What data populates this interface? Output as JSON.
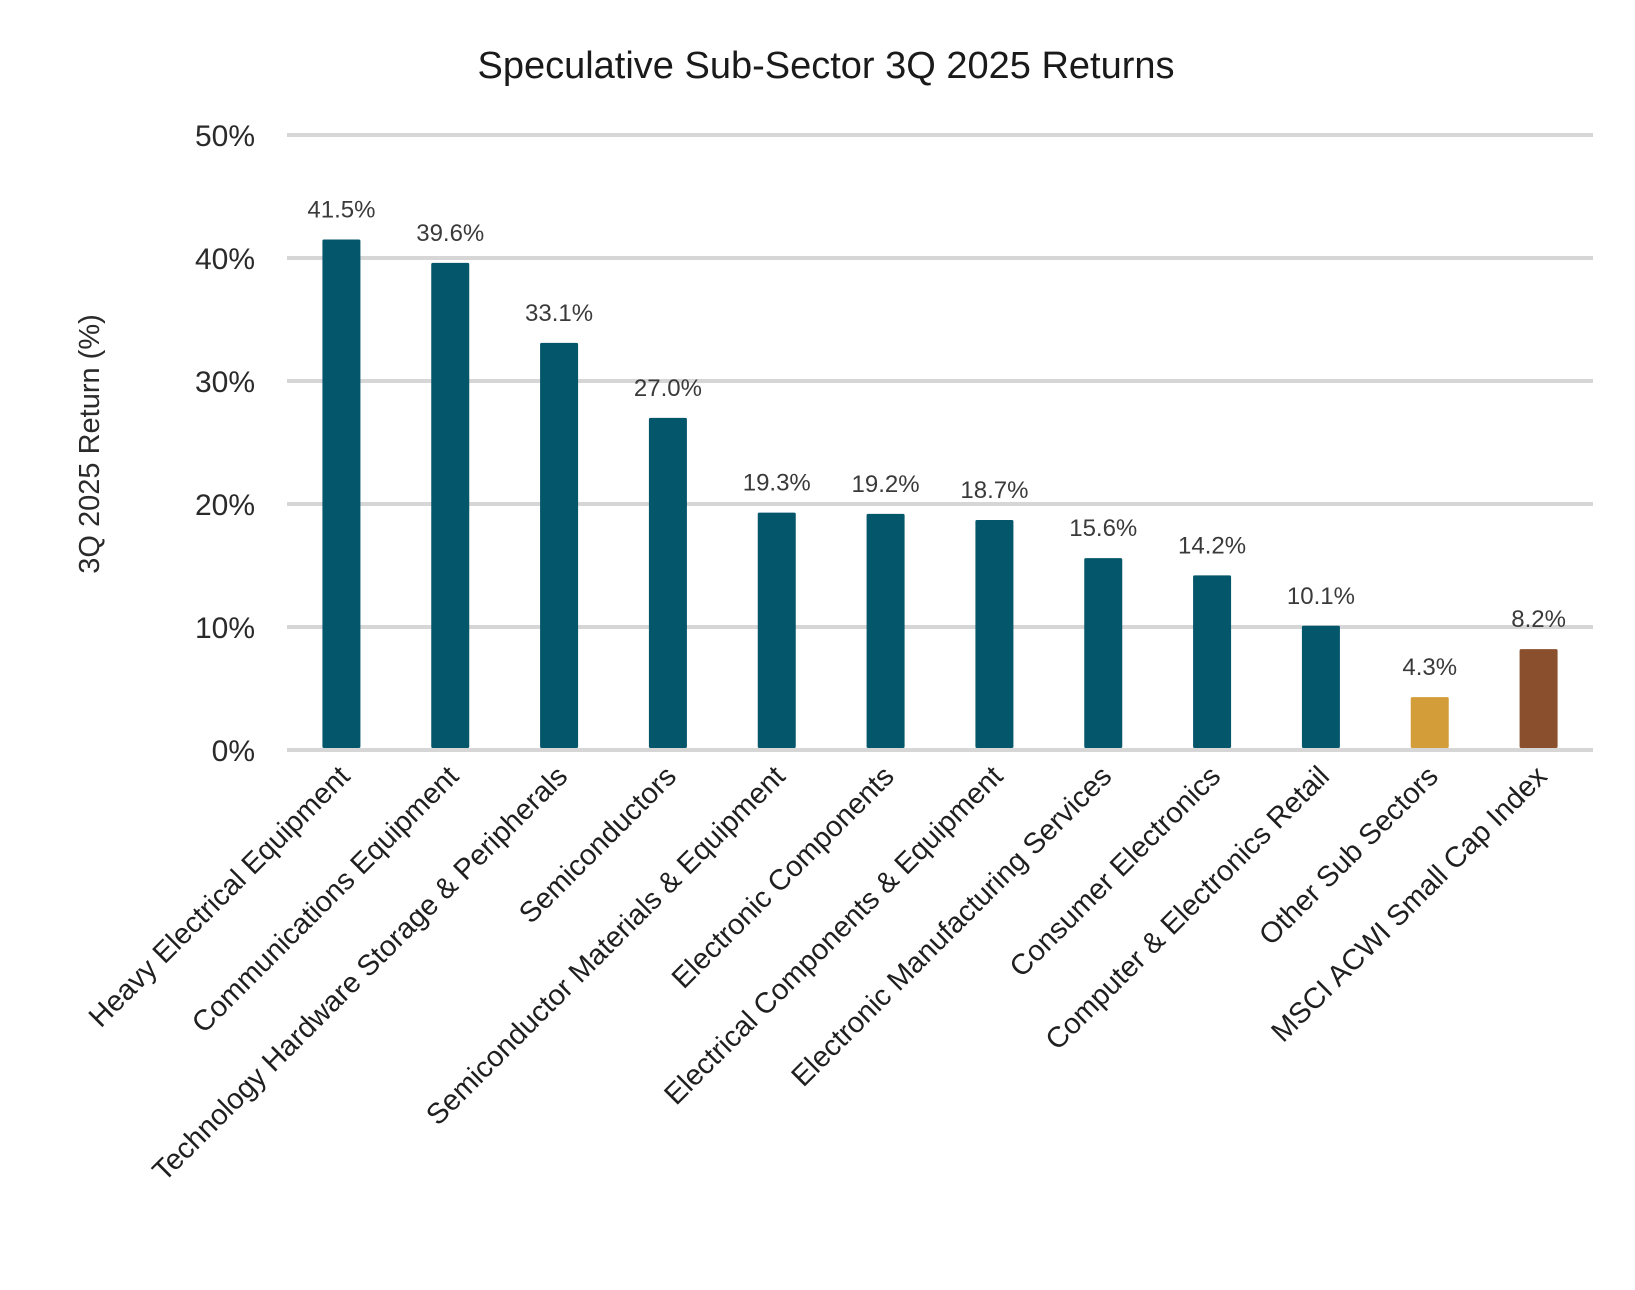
{
  "chart_data": {
    "type": "bar",
    "title": "Speculative Sub-Sector 3Q 2025 Returns",
    "xlabel": "",
    "ylabel": "3Q 2025 Return (%)",
    "ylim": [
      0,
      50
    ],
    "yticks": [
      0,
      10,
      20,
      30,
      40,
      50
    ],
    "ytick_labels": [
      "0%",
      "10%",
      "20%",
      "30%",
      "40%",
      "50%"
    ],
    "grid": true,
    "legend": "none",
    "categories": [
      "Heavy Electrical Equipment",
      "Communications Equipment",
      "Technology Hardware Storage & Peripherals",
      "Semiconductors",
      "Semiconductor Materials & Equipment",
      "Electronic Components",
      "Electrical Components & Equipment",
      "Electronic Manufacturing Services",
      "Consumer Electronics",
      "Computer & Electronics Retail",
      "Other Sub Sectors",
      "MSCI ACWI Small Cap Index"
    ],
    "values": [
      41.5,
      39.6,
      33.1,
      27.0,
      19.3,
      19.2,
      18.7,
      15.6,
      14.2,
      10.1,
      4.3,
      8.2
    ],
    "data_labels": [
      "41.5%",
      "39.6%",
      "33.1%",
      "27.0%",
      "19.3%",
      "19.2%",
      "18.7%",
      "15.6%",
      "14.2%",
      "10.1%",
      "4.3%",
      "8.2%"
    ],
    "bar_colors": [
      "#04566b",
      "#04566b",
      "#04566b",
      "#04566b",
      "#04566b",
      "#04566b",
      "#04566b",
      "#04566b",
      "#04566b",
      "#04566b",
      "#d39d3a",
      "#8a4f2c"
    ]
  }
}
